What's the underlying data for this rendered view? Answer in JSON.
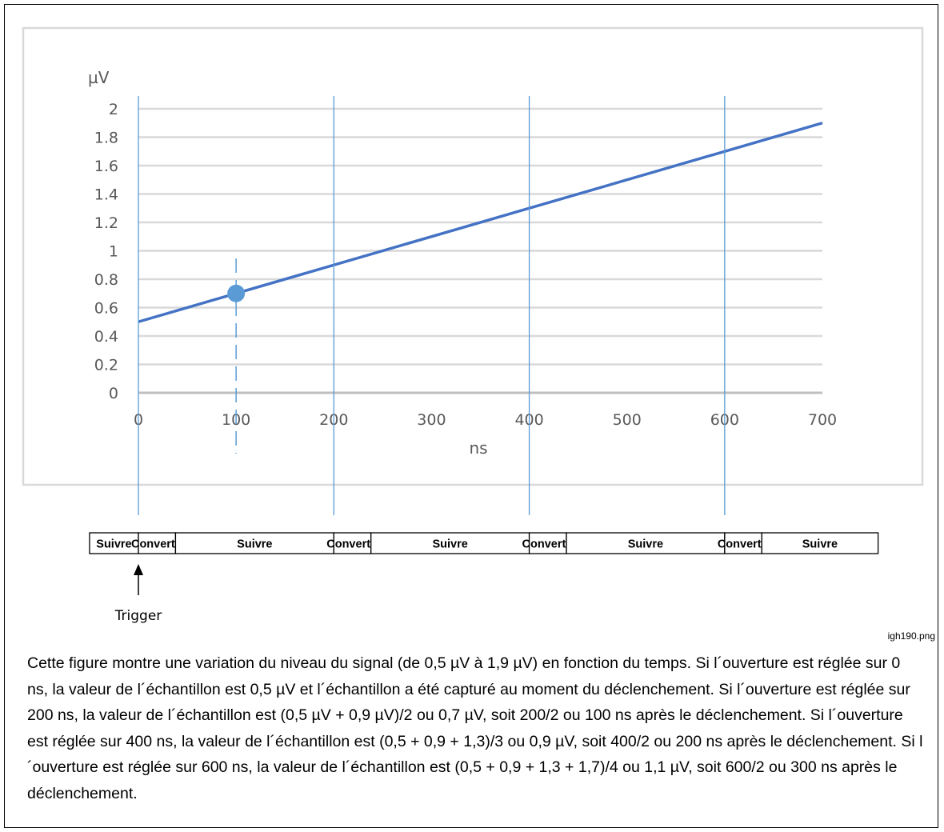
{
  "chart_data": {
    "type": "line",
    "ylabel": "µV",
    "xlabel": "ns",
    "xlim": [
      0,
      700
    ],
    "ylim": [
      0,
      2
    ],
    "x_ticks": [
      0,
      100,
      200,
      300,
      400,
      500,
      600,
      700
    ],
    "x_tick_labels": [
      "0",
      "100",
      "200",
      "300",
      "400",
      "500",
      "600",
      "700"
    ],
    "y_ticks": [
      0,
      0.2,
      0.4,
      0.6,
      0.8,
      1,
      1.2,
      1.4,
      1.6,
      1.8,
      2
    ],
    "y_tick_labels": [
      "0",
      "0.2",
      "0.4",
      "0.6",
      "0.8",
      "1",
      "1.2",
      "1.4",
      "1.6",
      "1.8",
      "2"
    ],
    "grid": "horizontal",
    "series": [
      {
        "x": [
          0,
          700
        ],
        "y": [
          0.5,
          1.9
        ],
        "color": "#4472c4"
      }
    ],
    "marker_point": {
      "x": 100,
      "y": 0.7,
      "color": "#5b9bd5"
    },
    "dashed_marker_x": 100,
    "aperture_lines_x": [
      0,
      200,
      400,
      600
    ],
    "aperture_line_color": "#5b9bd5"
  },
  "timeline": {
    "segments": [
      {
        "label": "Suivre",
        "start": -50,
        "end": 0
      },
      {
        "label": "Convertir",
        "start": 0,
        "end": 38
      },
      {
        "label": "Suivre",
        "start": 38,
        "end": 200
      },
      {
        "label": "Convertir",
        "start": 200,
        "end": 238
      },
      {
        "label": "Suivre",
        "start": 238,
        "end": 400
      },
      {
        "label": "Convertir",
        "start": 400,
        "end": 438
      },
      {
        "label": "Suivre",
        "start": 438,
        "end": 600
      },
      {
        "label": "Convertir",
        "start": 600,
        "end": 638
      },
      {
        "label": "Suivre",
        "start": 638,
        "end": 757
      }
    ],
    "trigger_label": "Trigger",
    "trigger_x": 0
  },
  "filename": "igh190.png",
  "caption": "Cette figure montre une variation du niveau du signal (de 0,5 µV à 1,9 µV) en fonction du temps. Si l´ouverture est réglée sur 0 ns, la valeur de l´échantillon est 0,5 µV et l´échantillon a été capturé au moment du déclenchement. Si l´ouverture est réglée sur 200 ns, la valeur de l´échantillon est (0,5 µV + 0,9 µV)/2 ou 0,7 µV, soit 200/2 ou 100 ns après le déclenchement. Si l´ouverture est réglée sur 400 ns, la valeur de l´échantillon est (0,5 + 0,9 + 1,3)/3 ou 0,9 µV, soit 400/2 ou 200 ns après le déclenchement. Si l´ouverture est réglée sur 600 ns, la valeur de l´échantillon est (0,5 + 0,9 + 1,3 + 1,7)/4 ou 1,1 µV, soit 600/2 ou 300 ns après le déclenchement."
}
